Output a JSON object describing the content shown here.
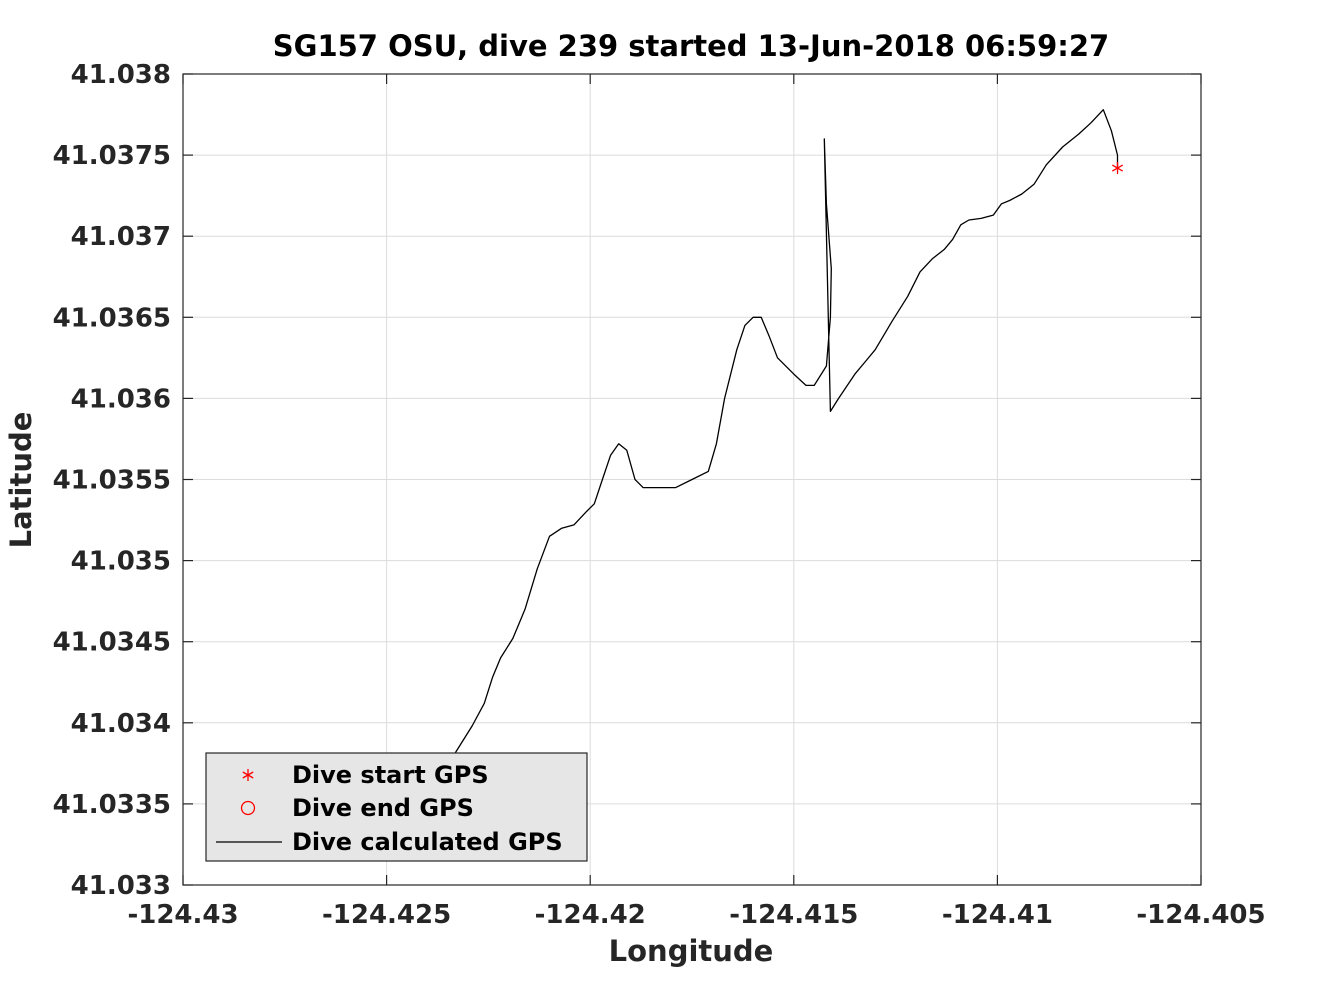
{
  "chart_data": {
    "type": "line",
    "title": "SG157 OSU, dive 239 started 13-Jun-2018 06:59:27",
    "xlabel": "Longitude",
    "ylabel": "Latitude",
    "xlim": [
      -124.43,
      -124.405
    ],
    "ylim": [
      41.033,
      41.038
    ],
    "xticks": [
      -124.43,
      -124.425,
      -124.42,
      -124.415,
      -124.41,
      -124.405
    ],
    "xtick_labels": [
      "-124.43",
      "-124.425",
      "-124.42",
      "-124.415",
      "-124.41",
      "-124.405"
    ],
    "yticks": [
      41.033,
      41.0335,
      41.034,
      41.0345,
      41.035,
      41.0355,
      41.036,
      41.0365,
      41.037,
      41.0375,
      41.038
    ],
    "ytick_labels": [
      "41.033",
      "41.0335",
      "41.034",
      "41.0345",
      "41.035",
      "41.0355",
      "41.036",
      "41.0365",
      "41.037",
      "41.0375",
      "41.038"
    ],
    "grid": true,
    "legend_position": "bottom-left",
    "series": [
      {
        "name": "Dive start GPS",
        "marker": "asterisk",
        "color": "#ff0000",
        "points": [
          [
            -124.40705,
            41.03742
          ]
        ]
      },
      {
        "name": "Dive end GPS",
        "marker": "circle",
        "color": "#ff0000",
        "points": [
          [
            -124.42545,
            41.03322
          ]
        ]
      },
      {
        "name": "Dive calculated GPS",
        "marker": "line",
        "color": "#000000",
        "points": [
          [
            -124.42545,
            41.03322
          ],
          [
            -124.4252,
            41.03332
          ],
          [
            -124.4249,
            41.03348
          ],
          [
            -124.4246,
            41.03358
          ],
          [
            -124.4243,
            41.03352
          ],
          [
            -124.4239,
            41.03358
          ],
          [
            -124.4236,
            41.03368
          ],
          [
            -124.4233,
            41.03382
          ],
          [
            -124.4229,
            41.03398
          ],
          [
            -124.4226,
            41.03412
          ],
          [
            -124.4224,
            41.03428
          ],
          [
            -124.4222,
            41.0344
          ],
          [
            -124.4219,
            41.03452
          ],
          [
            -124.4218,
            41.03458
          ],
          [
            -124.4216,
            41.0347
          ],
          [
            -124.4213,
            41.03495
          ],
          [
            -124.421,
            41.03515
          ],
          [
            -124.4207,
            41.0352
          ],
          [
            -124.4204,
            41.03522
          ],
          [
            -124.4201,
            41.0353
          ],
          [
            -124.4199,
            41.03535
          ],
          [
            -124.4197,
            41.0355
          ],
          [
            -124.4195,
            41.03565
          ],
          [
            -124.4193,
            41.03572
          ],
          [
            -124.4191,
            41.03568
          ],
          [
            -124.4189,
            41.0355
          ],
          [
            -124.4187,
            41.03545
          ],
          [
            -124.4183,
            41.03545
          ],
          [
            -124.4179,
            41.03545
          ],
          [
            -124.4175,
            41.0355
          ],
          [
            -124.4171,
            41.03555
          ],
          [
            -124.4169,
            41.03572
          ],
          [
            -124.4167,
            41.036
          ],
          [
            -124.4164,
            41.0363
          ],
          [
            -124.4162,
            41.03645
          ],
          [
            -124.416,
            41.0365
          ],
          [
            -124.4158,
            41.0365
          ],
          [
            -124.4156,
            41.03638
          ],
          [
            -124.4154,
            41.03625
          ],
          [
            -124.415,
            41.03615
          ],
          [
            -124.4147,
            41.03608
          ],
          [
            -124.4145,
            41.03608
          ],
          [
            -124.4142,
            41.0362
          ],
          [
            -124.4141,
            41.0365
          ],
          [
            -124.41408,
            41.0368
          ],
          [
            -124.4142,
            41.0372
          ],
          [
            -124.41425,
            41.0376
          ],
          [
            -124.4141,
            41.03592
          ],
          [
            -124.4139,
            41.036
          ],
          [
            -124.4135,
            41.03615
          ],
          [
            -124.4132,
            41.03624
          ],
          [
            -124.413,
            41.0363
          ],
          [
            -124.4126,
            41.03647
          ],
          [
            -124.4122,
            41.03663
          ],
          [
            -124.4119,
            41.03678
          ],
          [
            -124.4116,
            41.03686
          ],
          [
            -124.4113,
            41.03692
          ],
          [
            -124.4111,
            41.03698
          ],
          [
            -124.4109,
            41.03707
          ],
          [
            -124.4107,
            41.0371
          ],
          [
            -124.4104,
            41.03711
          ],
          [
            -124.4101,
            41.03713
          ],
          [
            -124.4099,
            41.0372
          ],
          [
            -124.4097,
            41.03722
          ],
          [
            -124.4094,
            41.03726
          ],
          [
            -124.4091,
            41.03732
          ],
          [
            -124.4088,
            41.03744
          ],
          [
            -124.4084,
            41.03755
          ],
          [
            -124.408,
            41.03763
          ],
          [
            -124.4077,
            41.0377
          ],
          [
            -124.4074,
            41.03778
          ],
          [
            -124.4072,
            41.03765
          ],
          [
            -124.40705,
            41.0375
          ],
          [
            -124.40705,
            41.03742
          ]
        ]
      }
    ]
  }
}
